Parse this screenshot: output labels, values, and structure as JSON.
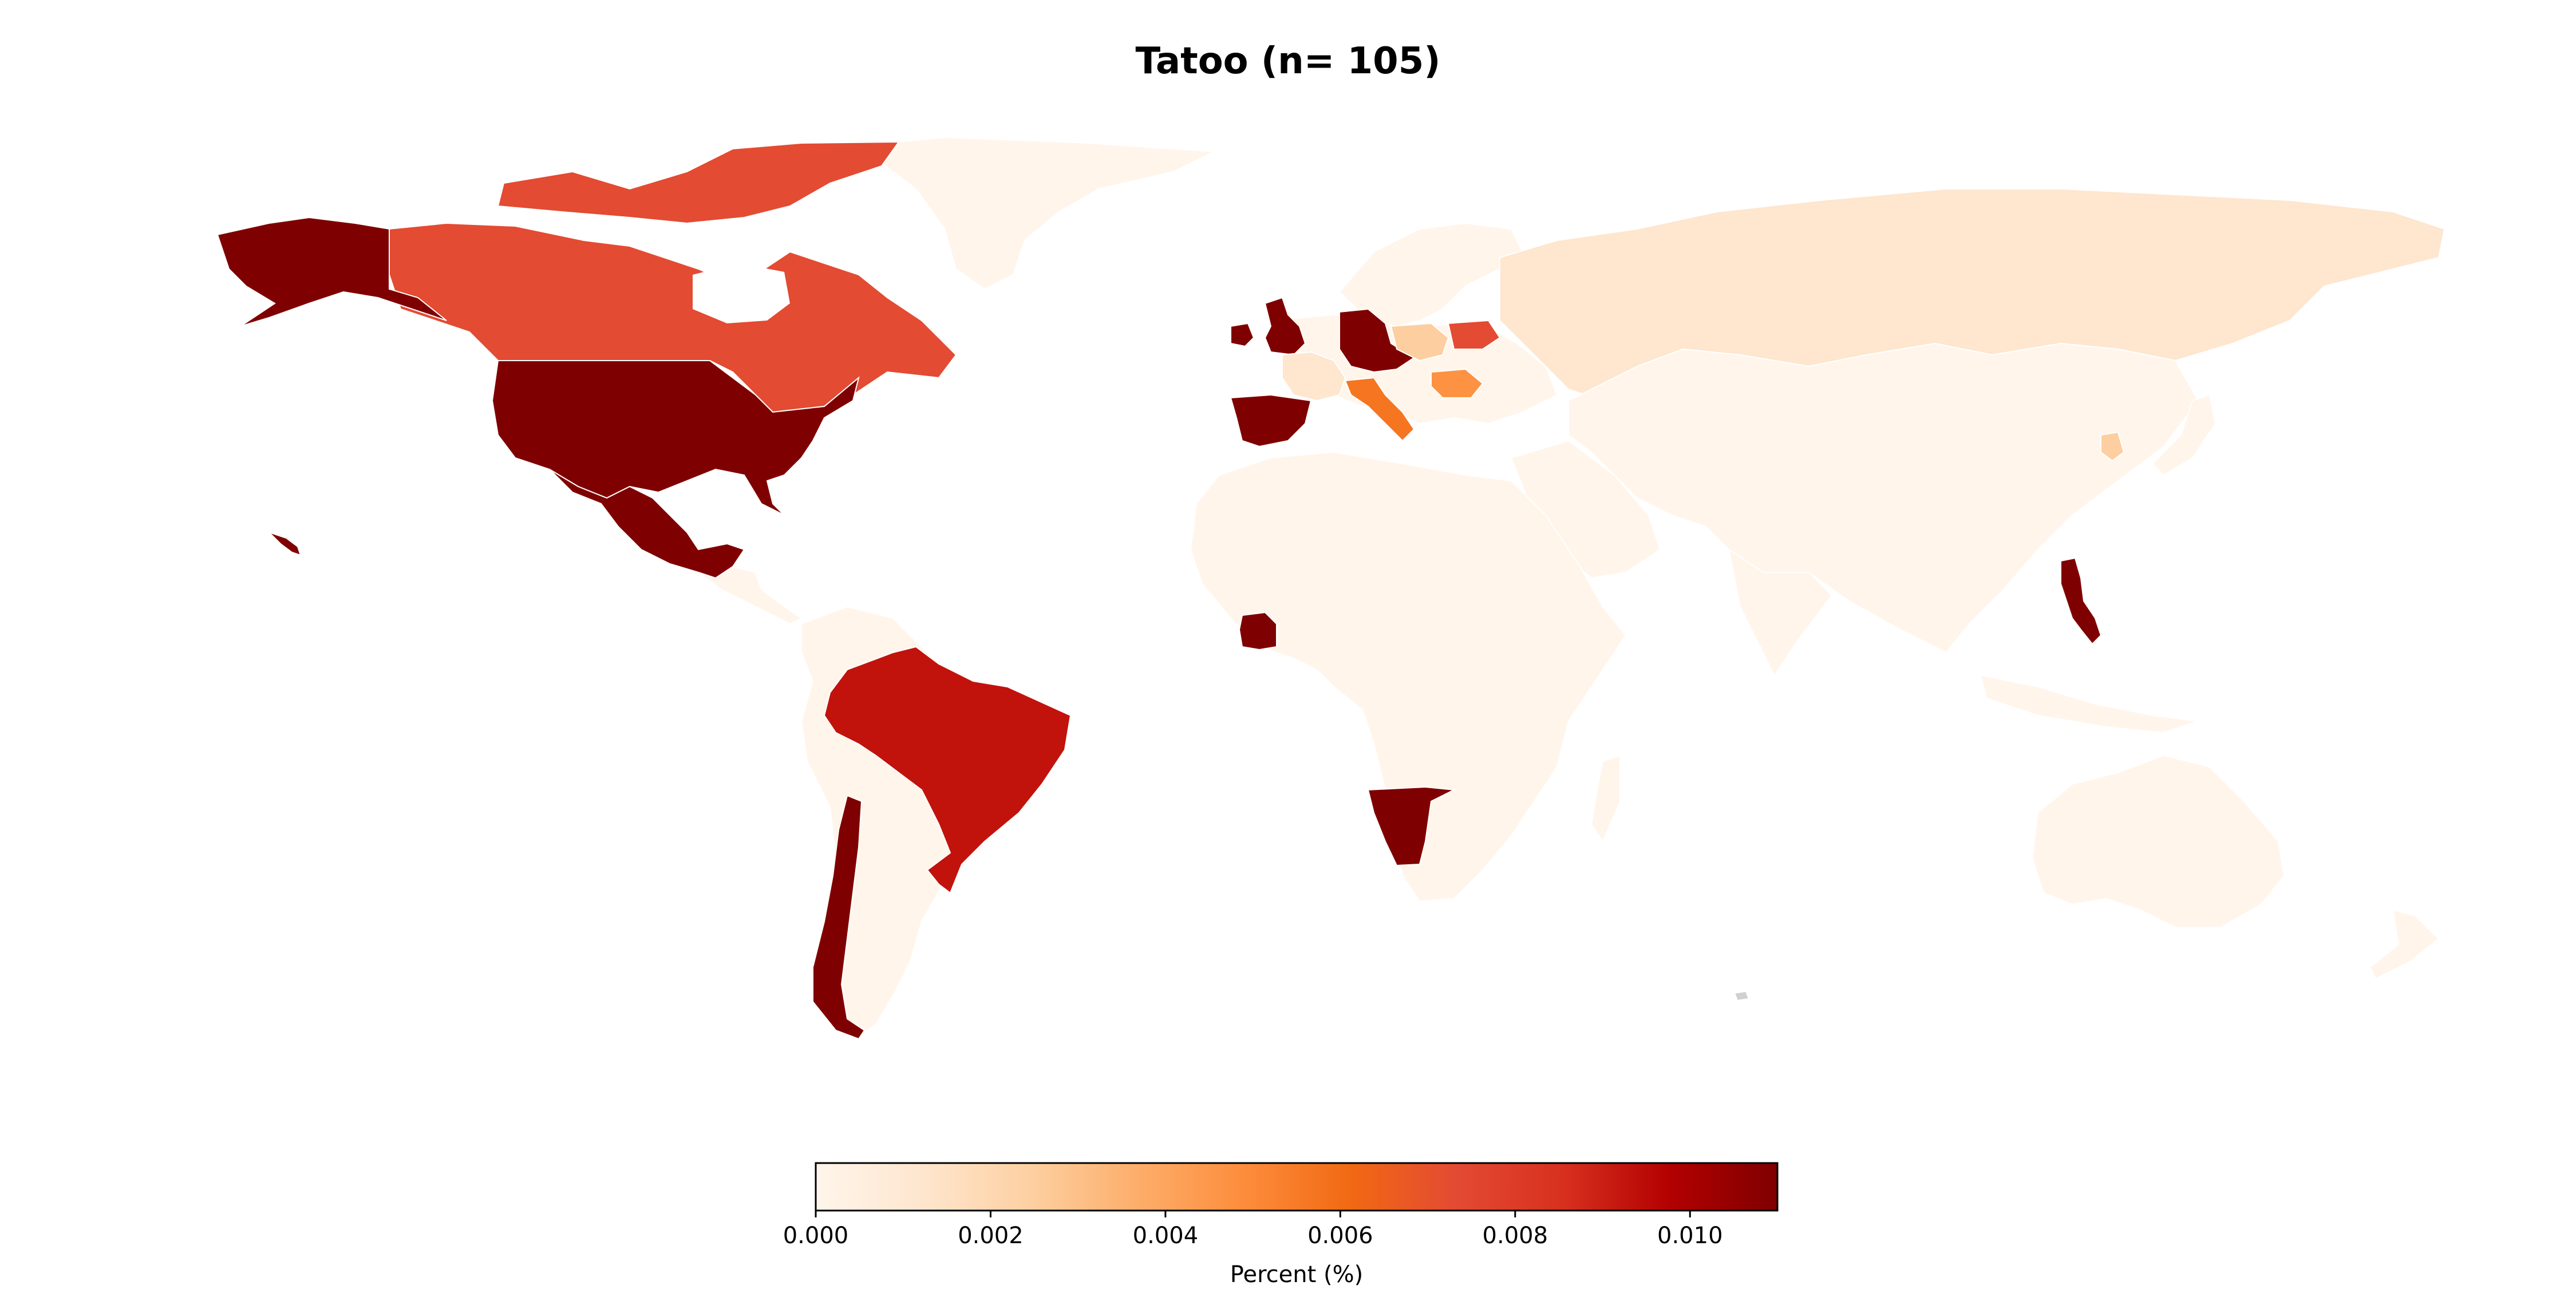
{
  "title": "Tatoo (n= 105)",
  "legend": {
    "label": "Percent (%)",
    "min": 0,
    "max": 0.011,
    "ticks": [
      "0.000",
      "0.002",
      "0.004",
      "0.006",
      "0.008",
      "0.010"
    ],
    "colormap": [
      "#fff5eb",
      "#fee6ce",
      "#fdd0a2",
      "#fdae6b",
      "#fd8d3c",
      "#f16913",
      "#e34a33",
      "#d7301f",
      "#b30000",
      "#7f0000"
    ]
  },
  "colors": {
    "darkest": "#7f0000",
    "dark_red": "#c0140e",
    "red_orange": "#e34a33",
    "orange": "#f5855a",
    "light_orange": "#fdcb95",
    "pale": "#fde6c8",
    "background_country": "#fff5eb",
    "no_data": "#d0d0d0"
  },
  "chart_data": {
    "type": "choropleth",
    "title": "Tatoo (n= 105)",
    "value_label": "Percent (%)",
    "value_range": [
      0,
      0.011
    ],
    "regions": [
      {
        "name": "United States",
        "value": 0.011
      },
      {
        "name": "Mexico",
        "value": 0.011
      },
      {
        "name": "Chile",
        "value": 0.011
      },
      {
        "name": "United Kingdom",
        "value": 0.011
      },
      {
        "name": "Ireland",
        "value": 0.011
      },
      {
        "name": "Germany",
        "value": 0.011
      },
      {
        "name": "Spain",
        "value": 0.011
      },
      {
        "name": "Ivory Coast",
        "value": 0.011
      },
      {
        "name": "Namibia",
        "value": 0.011
      },
      {
        "name": "Philippines",
        "value": 0.011
      },
      {
        "name": "Brazil",
        "value": 0.0093
      },
      {
        "name": "Canada",
        "value": 0.0073
      },
      {
        "name": "Belarus",
        "value": 0.0073
      },
      {
        "name": "Italy",
        "value": 0.0057
      },
      {
        "name": "Romania",
        "value": 0.0047
      },
      {
        "name": "Poland",
        "value": 0.0025
      },
      {
        "name": "South Korea",
        "value": 0.0025
      },
      {
        "name": "France",
        "value": 0.0012
      },
      {
        "name": "Russia",
        "value": 0.0012
      },
      {
        "name": "Greenland",
        "value": 0.0
      },
      {
        "name": "Argentina",
        "value": 0.0
      },
      {
        "name": "Africa (other)",
        "value": 0.0
      },
      {
        "name": "Asia (other)",
        "value": 0.0
      },
      {
        "name": "Australia",
        "value": 0.0
      }
    ]
  }
}
